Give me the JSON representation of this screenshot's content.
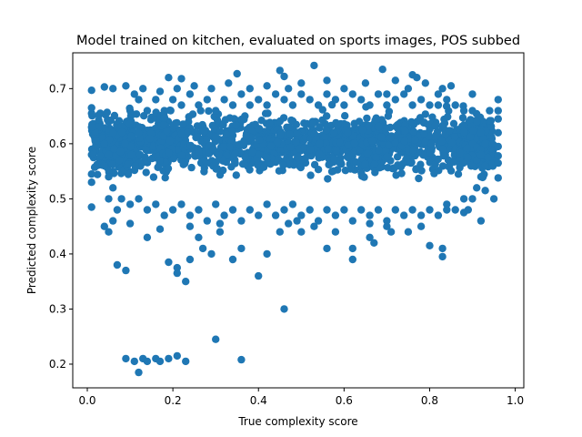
{
  "chart_data": {
    "type": "scatter",
    "title": "Model trained on kitchen, evaluated on sports images, POS subbed",
    "xlabel": "True complexity score",
    "ylabel": "Predicted complexity score",
    "xlim": [
      -0.034,
      1.02
    ],
    "ylim": [
      0.157,
      0.765
    ],
    "xticks": [
      0.0,
      0.2,
      0.4,
      0.6,
      0.8,
      1.0
    ],
    "xtick_labels": [
      "0.0",
      "0.2",
      "0.4",
      "0.6",
      "0.8",
      "1.0"
    ],
    "yticks": [
      0.2,
      0.3,
      0.4,
      0.5,
      0.6,
      0.7
    ],
    "ytick_labels": [
      "0.2",
      "0.3",
      "0.4",
      "0.5",
      "0.6",
      "0.7"
    ],
    "grid": false,
    "marker_color": "#1f77b4",
    "series": [
      {
        "points": [
          [
            0.09,
            0.21
          ],
          [
            0.11,
            0.205
          ],
          [
            0.12,
            0.185
          ],
          [
            0.13,
            0.21
          ],
          [
            0.14,
            0.205
          ],
          [
            0.16,
            0.21
          ],
          [
            0.17,
            0.205
          ],
          [
            0.19,
            0.21
          ],
          [
            0.21,
            0.215
          ],
          [
            0.23,
            0.205
          ],
          [
            0.3,
            0.245
          ],
          [
            0.36,
            0.208
          ],
          [
            0.46,
            0.3
          ],
          [
            0.07,
            0.38
          ],
          [
            0.09,
            0.37
          ],
          [
            0.19,
            0.385
          ],
          [
            0.21,
            0.375
          ],
          [
            0.21,
            0.365
          ],
          [
            0.23,
            0.35
          ],
          [
            0.24,
            0.39
          ],
          [
            0.27,
            0.41
          ],
          [
            0.29,
            0.4
          ],
          [
            0.34,
            0.39
          ],
          [
            0.4,
            0.36
          ],
          [
            0.42,
            0.4
          ],
          [
            0.36,
            0.41
          ],
          [
            0.45,
            0.44
          ],
          [
            0.5,
            0.44
          ],
          [
            0.56,
            0.41
          ],
          [
            0.62,
            0.39
          ],
          [
            0.66,
            0.43
          ],
          [
            0.71,
            0.44
          ],
          [
            0.8,
            0.415
          ],
          [
            0.83,
            0.395
          ],
          [
            0.83,
            0.41
          ],
          [
            0.14,
            0.43
          ],
          [
            0.26,
            0.43
          ],
          [
            0.31,
            0.44
          ],
          [
            0.49,
            0.46
          ],
          [
            0.53,
            0.45
          ],
          [
            0.58,
            0.44
          ],
          [
            0.62,
            0.41
          ],
          [
            0.67,
            0.42
          ],
          [
            0.75,
            0.44
          ],
          [
            0.05,
            0.44
          ],
          [
            0.04,
            0.45
          ],
          [
            0.06,
            0.46
          ],
          [
            0.1,
            0.455
          ],
          [
            0.17,
            0.445
          ],
          [
            0.24,
            0.45
          ],
          [
            0.31,
            0.455
          ],
          [
            0.47,
            0.455
          ],
          [
            0.66,
            0.455
          ],
          [
            0.7,
            0.45
          ],
          [
            0.78,
            0.45
          ],
          [
            0.92,
            0.46
          ],
          [
            0.88,
            0.475
          ],
          [
            0.84,
            0.48
          ],
          [
            0.01,
            0.485
          ],
          [
            0.95,
            0.5
          ],
          [
            0.01,
            0.53
          ],
          [
            0.01,
            0.545
          ],
          [
            0.01,
            0.58
          ],
          [
            0.01,
            0.63
          ],
          [
            0.01,
            0.655
          ],
          [
            0.01,
            0.665
          ],
          [
            0.01,
            0.697
          ],
          [
            0.04,
            0.703
          ],
          [
            0.06,
            0.7
          ],
          [
            0.09,
            0.705
          ],
          [
            0.19,
            0.72
          ],
          [
            0.22,
            0.718
          ],
          [
            0.35,
            0.727
          ],
          [
            0.45,
            0.733
          ],
          [
            0.46,
            0.722
          ],
          [
            0.53,
            0.742
          ],
          [
            0.69,
            0.735
          ],
          [
            0.76,
            0.725
          ],
          [
            0.77,
            0.72
          ],
          [
            0.96,
            0.68
          ],
          [
            0.96,
            0.66
          ],
          [
            0.96,
            0.645
          ],
          [
            0.96,
            0.62
          ],
          [
            0.96,
            0.595
          ],
          [
            0.96,
            0.578
          ],
          [
            0.96,
            0.565
          ],
          [
            0.96,
            0.538
          ],
          [
            0.93,
            0.515
          ],
          [
            0.94,
            0.66
          ],
          [
            0.9,
            0.69
          ],
          [
            0.85,
            0.705
          ],
          [
            0.83,
            0.7
          ],
          [
            0.82,
            0.67
          ],
          [
            0.79,
            0.71
          ],
          [
            0.75,
            0.7
          ],
          [
            0.72,
            0.715
          ],
          [
            0.7,
            0.69
          ],
          [
            0.65,
            0.71
          ],
          [
            0.6,
            0.7
          ],
          [
            0.56,
            0.715
          ],
          [
            0.5,
            0.71
          ],
          [
            0.47,
            0.7
          ],
          [
            0.42,
            0.705
          ],
          [
            0.38,
            0.7
          ],
          [
            0.33,
            0.71
          ],
          [
            0.29,
            0.7
          ],
          [
            0.25,
            0.705
          ],
          [
            0.21,
            0.7
          ],
          [
            0.17,
            0.695
          ],
          [
            0.13,
            0.7
          ],
          [
            0.11,
            0.69
          ],
          [
            0.05,
            0.64
          ],
          [
            0.06,
            0.62
          ],
          [
            0.04,
            0.6
          ],
          [
            0.05,
            0.58
          ],
          [
            0.04,
            0.56
          ],
          [
            0.05,
            0.54
          ],
          [
            0.06,
            0.52
          ],
          [
            0.05,
            0.5
          ],
          [
            0.07,
            0.48
          ],
          [
            0.08,
            0.5
          ],
          [
            0.91,
            0.52
          ],
          [
            0.92,
            0.54
          ],
          [
            0.93,
            0.56
          ],
          [
            0.92,
            0.58
          ],
          [
            0.93,
            0.6
          ],
          [
            0.92,
            0.62
          ],
          [
            0.91,
            0.64
          ],
          [
            0.9,
            0.66
          ],
          [
            0.9,
            0.5
          ],
          [
            0.89,
            0.48
          ],
          [
            0.1,
            0.66
          ],
          [
            0.12,
            0.68
          ],
          [
            0.14,
            0.66
          ],
          [
            0.16,
            0.68
          ],
          [
            0.18,
            0.66
          ],
          [
            0.2,
            0.68
          ],
          [
            0.22,
            0.67
          ],
          [
            0.24,
            0.69
          ],
          [
            0.26,
            0.67
          ],
          [
            0.28,
            0.68
          ],
          [
            0.3,
            0.66
          ],
          [
            0.32,
            0.68
          ],
          [
            0.34,
            0.67
          ],
          [
            0.36,
            0.69
          ],
          [
            0.38,
            0.67
          ],
          [
            0.4,
            0.68
          ],
          [
            0.42,
            0.67
          ],
          [
            0.44,
            0.69
          ],
          [
            0.46,
            0.68
          ],
          [
            0.48,
            0.67
          ],
          [
            0.5,
            0.69
          ],
          [
            0.52,
            0.68
          ],
          [
            0.54,
            0.67
          ],
          [
            0.56,
            0.69
          ],
          [
            0.58,
            0.68
          ],
          [
            0.6,
            0.67
          ],
          [
            0.62,
            0.69
          ],
          [
            0.64,
            0.68
          ],
          [
            0.66,
            0.67
          ],
          [
            0.68,
            0.69
          ],
          [
            0.7,
            0.67
          ],
          [
            0.72,
            0.68
          ],
          [
            0.74,
            0.69
          ],
          [
            0.76,
            0.67
          ],
          [
            0.78,
            0.68
          ],
          [
            0.8,
            0.67
          ],
          [
            0.82,
            0.69
          ],
          [
            0.84,
            0.68
          ],
          [
            0.86,
            0.67
          ],
          [
            0.88,
            0.66
          ],
          [
            0.1,
            0.49
          ],
          [
            0.12,
            0.5
          ],
          [
            0.14,
            0.48
          ],
          [
            0.16,
            0.49
          ],
          [
            0.18,
            0.47
          ],
          [
            0.2,
            0.48
          ],
          [
            0.22,
            0.49
          ],
          [
            0.24,
            0.47
          ],
          [
            0.26,
            0.48
          ],
          [
            0.28,
            0.46
          ],
          [
            0.3,
            0.49
          ],
          [
            0.32,
            0.47
          ],
          [
            0.34,
            0.48
          ],
          [
            0.36,
            0.46
          ],
          [
            0.38,
            0.48
          ],
          [
            0.4,
            0.47
          ],
          [
            0.42,
            0.49
          ],
          [
            0.44,
            0.47
          ],
          [
            0.46,
            0.48
          ],
          [
            0.48,
            0.49
          ],
          [
            0.5,
            0.47
          ],
          [
            0.52,
            0.48
          ],
          [
            0.54,
            0.46
          ],
          [
            0.56,
            0.48
          ],
          [
            0.58,
            0.47
          ],
          [
            0.6,
            0.48
          ],
          [
            0.62,
            0.46
          ],
          [
            0.64,
            0.48
          ],
          [
            0.66,
            0.47
          ],
          [
            0.68,
            0.48
          ],
          [
            0.7,
            0.46
          ],
          [
            0.72,
            0.48
          ],
          [
            0.74,
            0.47
          ],
          [
            0.76,
            0.48
          ],
          [
            0.78,
            0.47
          ],
          [
            0.8,
            0.48
          ],
          [
            0.82,
            0.47
          ],
          [
            0.84,
            0.49
          ],
          [
            0.86,
            0.48
          ],
          [
            0.88,
            0.5
          ]
        ]
      }
    ],
    "cloud": [
      [
        0.05,
        0.5,
        0.11,
        0.96
      ],
      [
        0.12,
        0.5,
        0.14,
        0.92
      ],
      [
        0.2,
        0.49,
        0.07,
        0.52
      ],
      [
        0.28,
        0.52,
        0.13,
        0.28
      ],
      [
        0.35,
        0.56,
        0.18,
        0.54
      ],
      [
        0.44,
        0.48,
        0.15,
        0.5
      ],
      [
        0.52,
        0.52,
        0.2,
        0.51
      ],
      [
        0.61,
        0.5,
        0.18,
        0.57
      ],
      [
        0.68,
        0.51,
        0.16,
        0.56
      ],
      [
        0.76,
        0.5,
        0.24,
        0.52
      ],
      [
        0.84,
        0.51,
        0.21,
        0.69
      ],
      [
        0.91,
        0.5,
        0.08,
        0.65
      ]
    ]
  }
}
